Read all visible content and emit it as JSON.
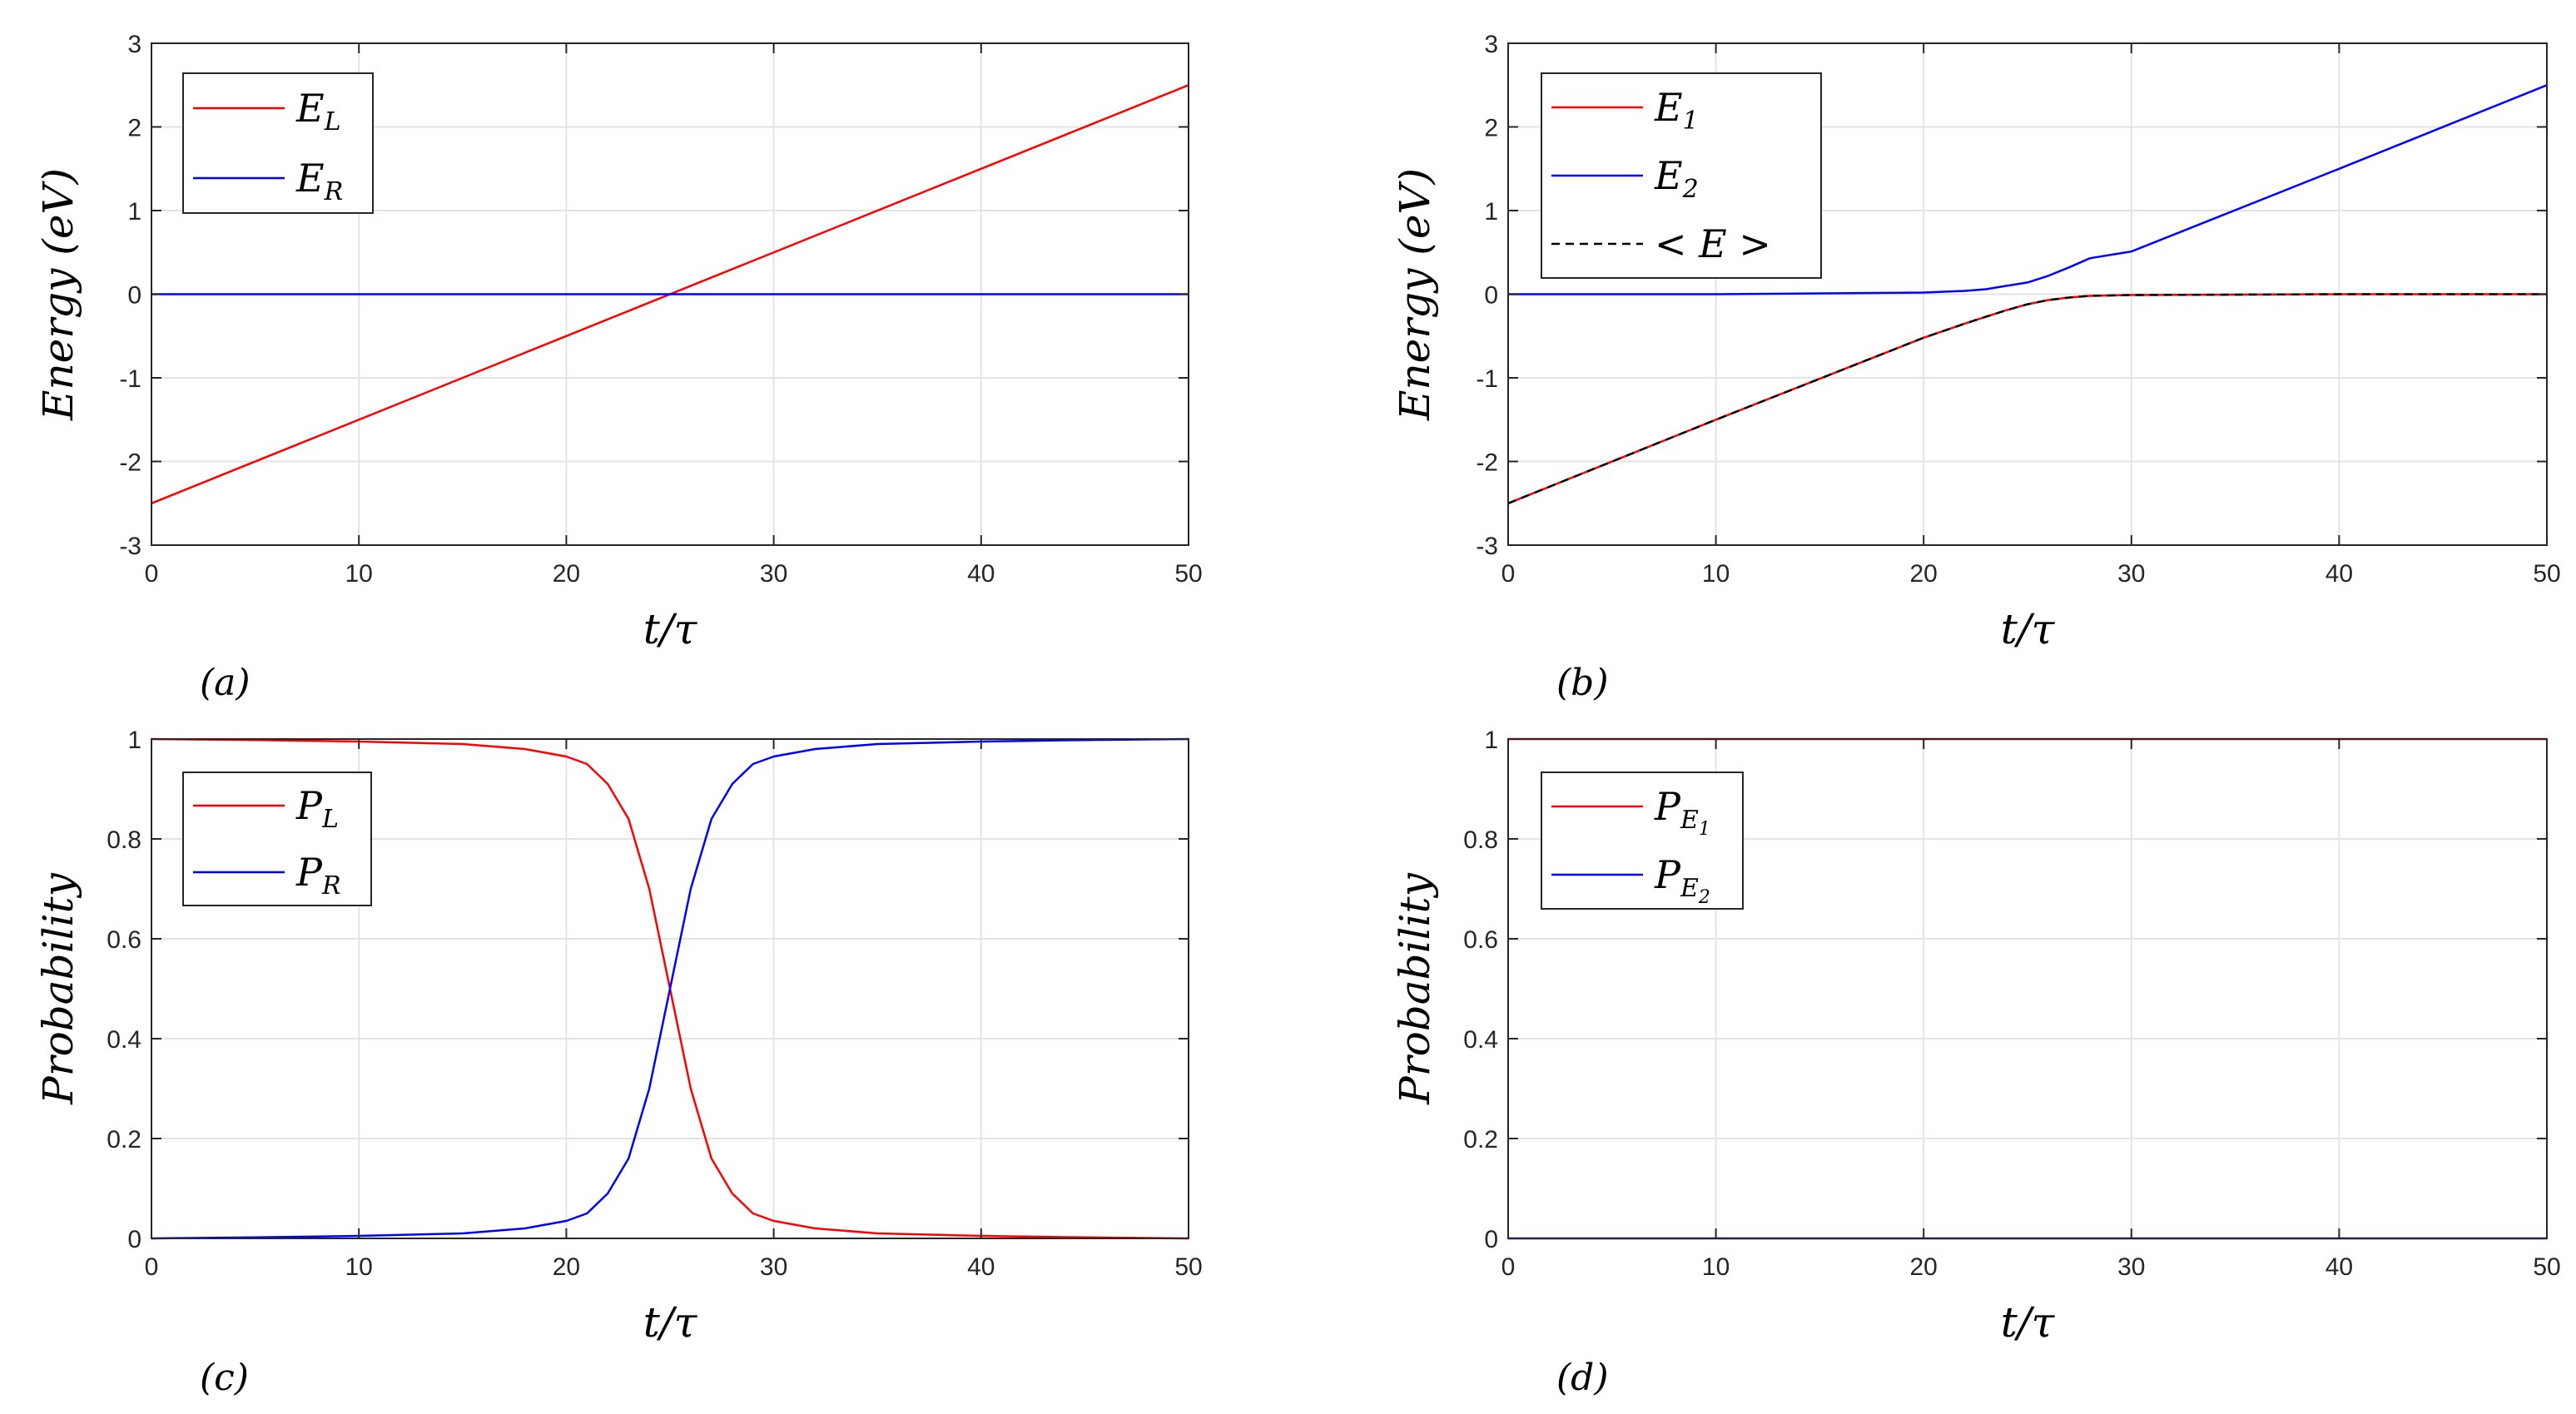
{
  "chart_data": [
    {
      "type": "line",
      "panel_label": "(a)",
      "xlabel": "t/τ",
      "ylabel": "Energy (eV)",
      "xlim": [
        0,
        50
      ],
      "ylim": [
        -3,
        3
      ],
      "xticks": [
        "0",
        "10",
        "20",
        "30",
        "40",
        "50"
      ],
      "yticks": [
        "-3",
        "-2",
        "-1",
        "0",
        "1",
        "2",
        "3"
      ],
      "grid": true,
      "legend_position": "top-left",
      "series": [
        {
          "name": "E_L",
          "legend_main": "E",
          "legend_sub": "L",
          "color": "#ff0000",
          "style": "solid",
          "x": [
            0,
            50
          ],
          "y": [
            -2.5,
            2.5
          ]
        },
        {
          "name": "E_R",
          "legend_main": "E",
          "legend_sub": "R",
          "color": "#0000ff",
          "style": "solid",
          "x": [
            0,
            50
          ],
          "y": [
            0,
            0
          ]
        }
      ]
    },
    {
      "type": "line",
      "panel_label": "(b)",
      "xlabel": "t/τ",
      "ylabel": "Energy (eV)",
      "xlim": [
        0,
        50
      ],
      "ylim": [
        -3,
        3
      ],
      "xticks": [
        "0",
        "10",
        "20",
        "30",
        "40",
        "50"
      ],
      "yticks": [
        "-3",
        "-2",
        "-1",
        "0",
        "1",
        "2",
        "3"
      ],
      "grid": true,
      "legend_position": "top-left",
      "series": [
        {
          "name": "E_1",
          "legend_main": "E",
          "legend_sub": "1",
          "color": "#ff0000",
          "style": "solid",
          "x": [
            0,
            10,
            20,
            22,
            23,
            24,
            25,
            26,
            27,
            28,
            30,
            40,
            50
          ],
          "y": [
            -2.5,
            -1.5,
            -0.52,
            -0.35,
            -0.27,
            -0.19,
            -0.12,
            -0.07,
            -0.04,
            -0.02,
            -0.01,
            0,
            0
          ]
        },
        {
          "name": "E_2",
          "legend_main": "E",
          "legend_sub": "2",
          "color": "#0000ff",
          "style": "solid",
          "x": [
            0,
            10,
            20,
            22,
            23,
            24,
            25,
            26,
            27,
            28,
            30,
            40,
            50
          ],
          "y": [
            0,
            0,
            0.02,
            0.04,
            0.06,
            0.1,
            0.14,
            0.22,
            0.32,
            0.43,
            0.51,
            1.5,
            2.5
          ]
        },
        {
          "name": "<E>",
          "legend_text": "< E >",
          "color": "#000000",
          "style": "dashed",
          "x": [
            0,
            10,
            20,
            22,
            23,
            24,
            25,
            26,
            27,
            28,
            30,
            40,
            50
          ],
          "y": [
            -2.5,
            -1.5,
            -0.52,
            -0.35,
            -0.27,
            -0.19,
            -0.12,
            -0.07,
            -0.04,
            -0.02,
            -0.01,
            0,
            0
          ]
        }
      ]
    },
    {
      "type": "line",
      "panel_label": "(c)",
      "xlabel": "t/τ",
      "ylabel": "Probability",
      "xlim": [
        0,
        50
      ],
      "ylim": [
        0,
        1
      ],
      "xticks": [
        "0",
        "10",
        "20",
        "30",
        "40",
        "50"
      ],
      "yticks": [
        "0",
        "0.2",
        "0.4",
        "0.6",
        "0.8",
        "1"
      ],
      "grid": true,
      "legend_position": "top-left",
      "series": [
        {
          "name": "P_L",
          "legend_main": "P",
          "legend_sub": "L",
          "color": "#ff0000",
          "style": "solid",
          "x": [
            0,
            5,
            10,
            15,
            18,
            20,
            21,
            22,
            23,
            24,
            25,
            26,
            27,
            28,
            29,
            30,
            32,
            35,
            40,
            45,
            50
          ],
          "y": [
            1.0,
            0.998,
            0.995,
            0.99,
            0.98,
            0.965,
            0.95,
            0.91,
            0.84,
            0.7,
            0.5,
            0.3,
            0.16,
            0.09,
            0.05,
            0.035,
            0.02,
            0.01,
            0.005,
            0.002,
            0.0
          ]
        },
        {
          "name": "P_R",
          "legend_main": "P",
          "legend_sub": "R",
          "color": "#0000ff",
          "style": "solid",
          "x": [
            0,
            5,
            10,
            15,
            18,
            20,
            21,
            22,
            23,
            24,
            25,
            26,
            27,
            28,
            29,
            30,
            32,
            35,
            40,
            45,
            50
          ],
          "y": [
            0.0,
            0.002,
            0.005,
            0.01,
            0.02,
            0.035,
            0.05,
            0.09,
            0.16,
            0.3,
            0.5,
            0.7,
            0.84,
            0.91,
            0.95,
            0.965,
            0.98,
            0.99,
            0.995,
            0.998,
            1.0
          ]
        }
      ]
    },
    {
      "type": "line",
      "panel_label": "(d)",
      "xlabel": "t/τ",
      "ylabel": "Probability",
      "xlim": [
        0,
        50
      ],
      "ylim": [
        0,
        1
      ],
      "xticks": [
        "0",
        "10",
        "20",
        "30",
        "40",
        "50"
      ],
      "yticks": [
        "0",
        "0.2",
        "0.4",
        "0.6",
        "0.8",
        "1"
      ],
      "grid": true,
      "legend_position": "top-left",
      "series": [
        {
          "name": "P_E1",
          "legend_main": "P",
          "legend_sub": "E",
          "legend_subsub": "1",
          "color": "#ff0000",
          "style": "solid",
          "x": [
            0,
            50
          ],
          "y": [
            1,
            1
          ]
        },
        {
          "name": "P_E2",
          "legend_main": "P",
          "legend_sub": "E",
          "legend_subsub": "2",
          "color": "#0000ff",
          "style": "solid",
          "x": [
            0,
            50
          ],
          "y": [
            0,
            0
          ]
        }
      ]
    }
  ]
}
